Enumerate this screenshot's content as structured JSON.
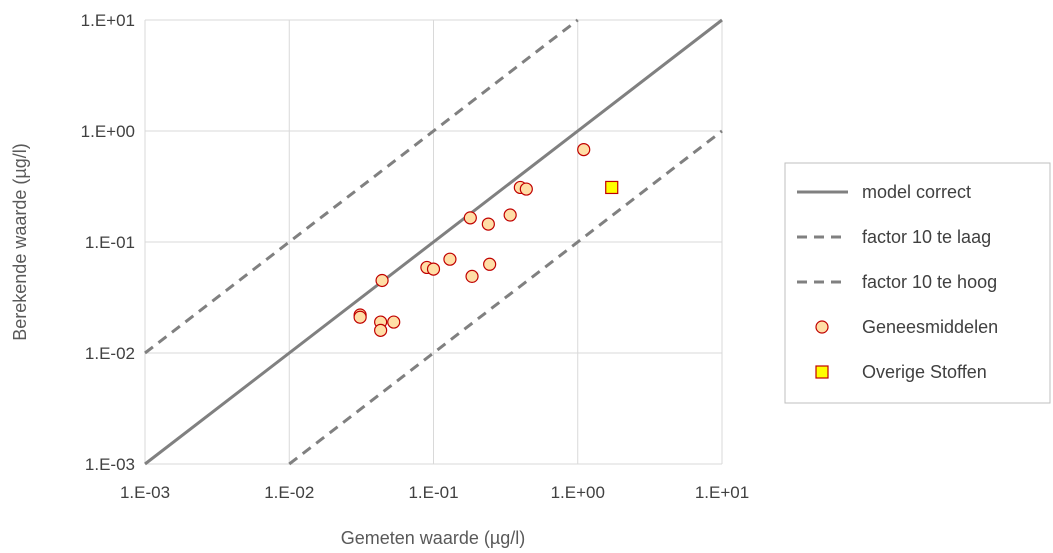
{
  "chart_data": {
    "type": "scatter",
    "xscale": "log",
    "yscale": "log",
    "xlabel": "Gemeten waarde (µg/l)",
    "ylabel": "Berekende waarde (µg/l)",
    "xlim": [
      0.001,
      10
    ],
    "ylim": [
      0.001,
      10
    ],
    "xticks": [
      0.001,
      0.01,
      0.1,
      1,
      10
    ],
    "yticks": [
      0.001,
      0.01,
      0.1,
      1,
      10
    ],
    "xtick_labels": [
      "1.E-03",
      "1.E-02",
      "1.E-01",
      "1.E+00",
      "1.E+01"
    ],
    "ytick_labels": [
      "1.E-03",
      "1.E-02",
      "1.E-01",
      "1.E+00",
      "1.E+01"
    ],
    "grid": true,
    "legend_position": "right",
    "lines": [
      {
        "name": "model correct",
        "factor": 1,
        "style": "solid",
        "color": "#808080"
      },
      {
        "name": "factor 10 te laag",
        "factor": 10,
        "style": "dashed",
        "color": "#808080"
      },
      {
        "name": "factor 10 te hoog",
        "factor": 0.1,
        "style": "dashed",
        "color": "#808080"
      }
    ],
    "series": [
      {
        "name": "Geneesmiddelen",
        "marker": "circle",
        "fill": "#FFDEA6",
        "stroke": "#C00000",
        "points": [
          {
            "x": 0.031,
            "y": 0.022
          },
          {
            "x": 0.031,
            "y": 0.021
          },
          {
            "x": 0.043,
            "y": 0.019
          },
          {
            "x": 0.043,
            "y": 0.016
          },
          {
            "x": 0.044,
            "y": 0.045
          },
          {
            "x": 0.053,
            "y": 0.019
          },
          {
            "x": 0.09,
            "y": 0.059
          },
          {
            "x": 0.1,
            "y": 0.057
          },
          {
            "x": 0.13,
            "y": 0.07
          },
          {
            "x": 0.18,
            "y": 0.165
          },
          {
            "x": 0.185,
            "y": 0.049
          },
          {
            "x": 0.24,
            "y": 0.145
          },
          {
            "x": 0.245,
            "y": 0.063
          },
          {
            "x": 0.34,
            "y": 0.175
          },
          {
            "x": 0.4,
            "y": 0.31
          },
          {
            "x": 0.44,
            "y": 0.3
          },
          {
            "x": 1.1,
            "y": 0.68
          }
        ]
      },
      {
        "name": "Overige Stoffen",
        "marker": "square",
        "fill": "#FFFF00",
        "stroke": "#C00000",
        "points": [
          {
            "x": 1.72,
            "y": 0.31
          }
        ]
      }
    ]
  }
}
